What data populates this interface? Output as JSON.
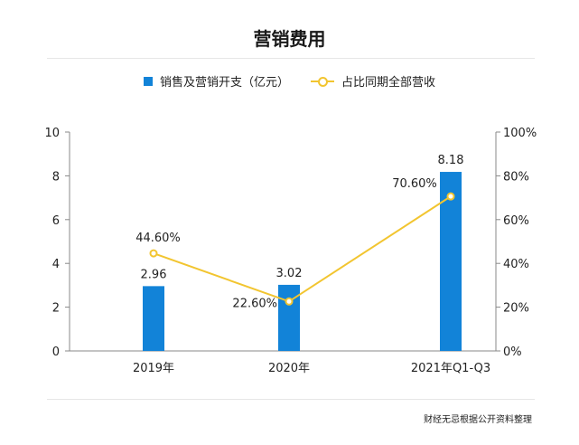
{
  "title": "营销费用",
  "footer": "财经无忌根据公开资料整理",
  "colors": {
    "bar": "#1283d8",
    "line": "#f2c530",
    "axis": "#888888",
    "grid_rule": "#e6e6e6"
  },
  "chart_data": {
    "type": "bar",
    "categories": [
      "2019年",
      "2020年",
      "2021年Q1-Q3"
    ],
    "series": [
      {
        "name": "销售及营销开支（亿元）",
        "type": "bar",
        "axis": "left",
        "values": [
          2.96,
          3.02,
          8.18
        ],
        "labels": [
          "2.96",
          "3.02",
          "8.18"
        ]
      },
      {
        "name": "占比同期全部营收",
        "type": "line",
        "axis": "right",
        "values": [
          44.6,
          22.6,
          70.6
        ],
        "labels": [
          "44.60%",
          "22.60%",
          "70.60%"
        ]
      }
    ],
    "y_left": {
      "ylim": [
        0,
        10
      ],
      "ticks": [
        "0",
        "2",
        "4",
        "6",
        "8",
        "10"
      ]
    },
    "y_right": {
      "ylim": [
        0,
        100
      ],
      "ticks": [
        "0%",
        "20%",
        "40%",
        "60%",
        "80%",
        "100%"
      ]
    },
    "grid": false,
    "legend": "top-center"
  }
}
